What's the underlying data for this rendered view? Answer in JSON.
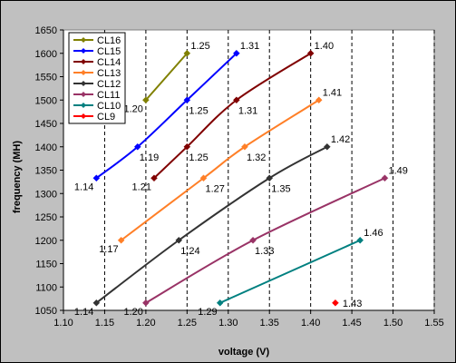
{
  "chart_data": {
    "type": "line",
    "title": "",
    "xlabel": "voltage (V)",
    "ylabel": "frequency (MH)",
    "xlim": [
      1.1,
      1.55
    ],
    "ylim": [
      1050,
      1650
    ],
    "xticks": [
      "1.10",
      "1.15",
      "1.20",
      "1.25",
      "1.30",
      "1.35",
      "1.40",
      "1.45",
      "1.50",
      "1.55"
    ],
    "yticks": [
      "1050",
      "1100",
      "1150",
      "1200",
      "1250",
      "1300",
      "1350",
      "1400",
      "1450",
      "1500",
      "1550",
      "1600",
      "1650"
    ],
    "grid": "vertical dashed",
    "legend_position": "top-left",
    "colors": {
      "plot_background": "#ffffff",
      "chart_background": "#c0c0c0",
      "gridline": "#000000"
    },
    "series": [
      {
        "name": "CL16",
        "color": "#808000",
        "points": [
          [
            1.2,
            1500,
            "1.20"
          ],
          [
            1.25,
            1600,
            "1.25"
          ]
        ]
      },
      {
        "name": "CL15",
        "color": "#0000ff",
        "points": [
          [
            1.14,
            1333,
            "1.14"
          ],
          [
            1.19,
            1400,
            "1.19"
          ],
          [
            1.25,
            1500,
            "1.25"
          ],
          [
            1.31,
            1600,
            "1.31"
          ]
        ]
      },
      {
        "name": "CL14",
        "color": "#800000",
        "points": [
          [
            1.21,
            1333,
            "1.21"
          ],
          [
            1.25,
            1400,
            "1.25"
          ],
          [
            1.31,
            1500,
            "1.31"
          ],
          [
            1.4,
            1600,
            "1.40"
          ]
        ]
      },
      {
        "name": "CL13",
        "color": "#ff7f27",
        "points": [
          [
            1.17,
            1200,
            "1.17"
          ],
          [
            1.27,
            1333,
            "1.27"
          ],
          [
            1.32,
            1400,
            "1.32"
          ],
          [
            1.41,
            1500,
            "1.41"
          ]
        ]
      },
      {
        "name": "CL12",
        "color": "#333333",
        "points": [
          [
            1.14,
            1066,
            "1.14"
          ],
          [
            1.24,
            1200,
            "1.24"
          ],
          [
            1.35,
            1333,
            "1.35"
          ],
          [
            1.42,
            1400,
            "1.42"
          ]
        ]
      },
      {
        "name": "CL11",
        "color": "#993366",
        "points": [
          [
            1.2,
            1066,
            "1.20"
          ],
          [
            1.33,
            1200,
            "1.33"
          ],
          [
            1.49,
            1333,
            "1.49"
          ]
        ]
      },
      {
        "name": "CL10",
        "color": "#008080",
        "points": [
          [
            1.29,
            1066,
            "1.29"
          ],
          [
            1.46,
            1200,
            "1.46"
          ]
        ]
      },
      {
        "name": "CL9",
        "color": "#ff0000",
        "points": [
          [
            1.43,
            1066,
            "1.43"
          ]
        ]
      }
    ]
  }
}
